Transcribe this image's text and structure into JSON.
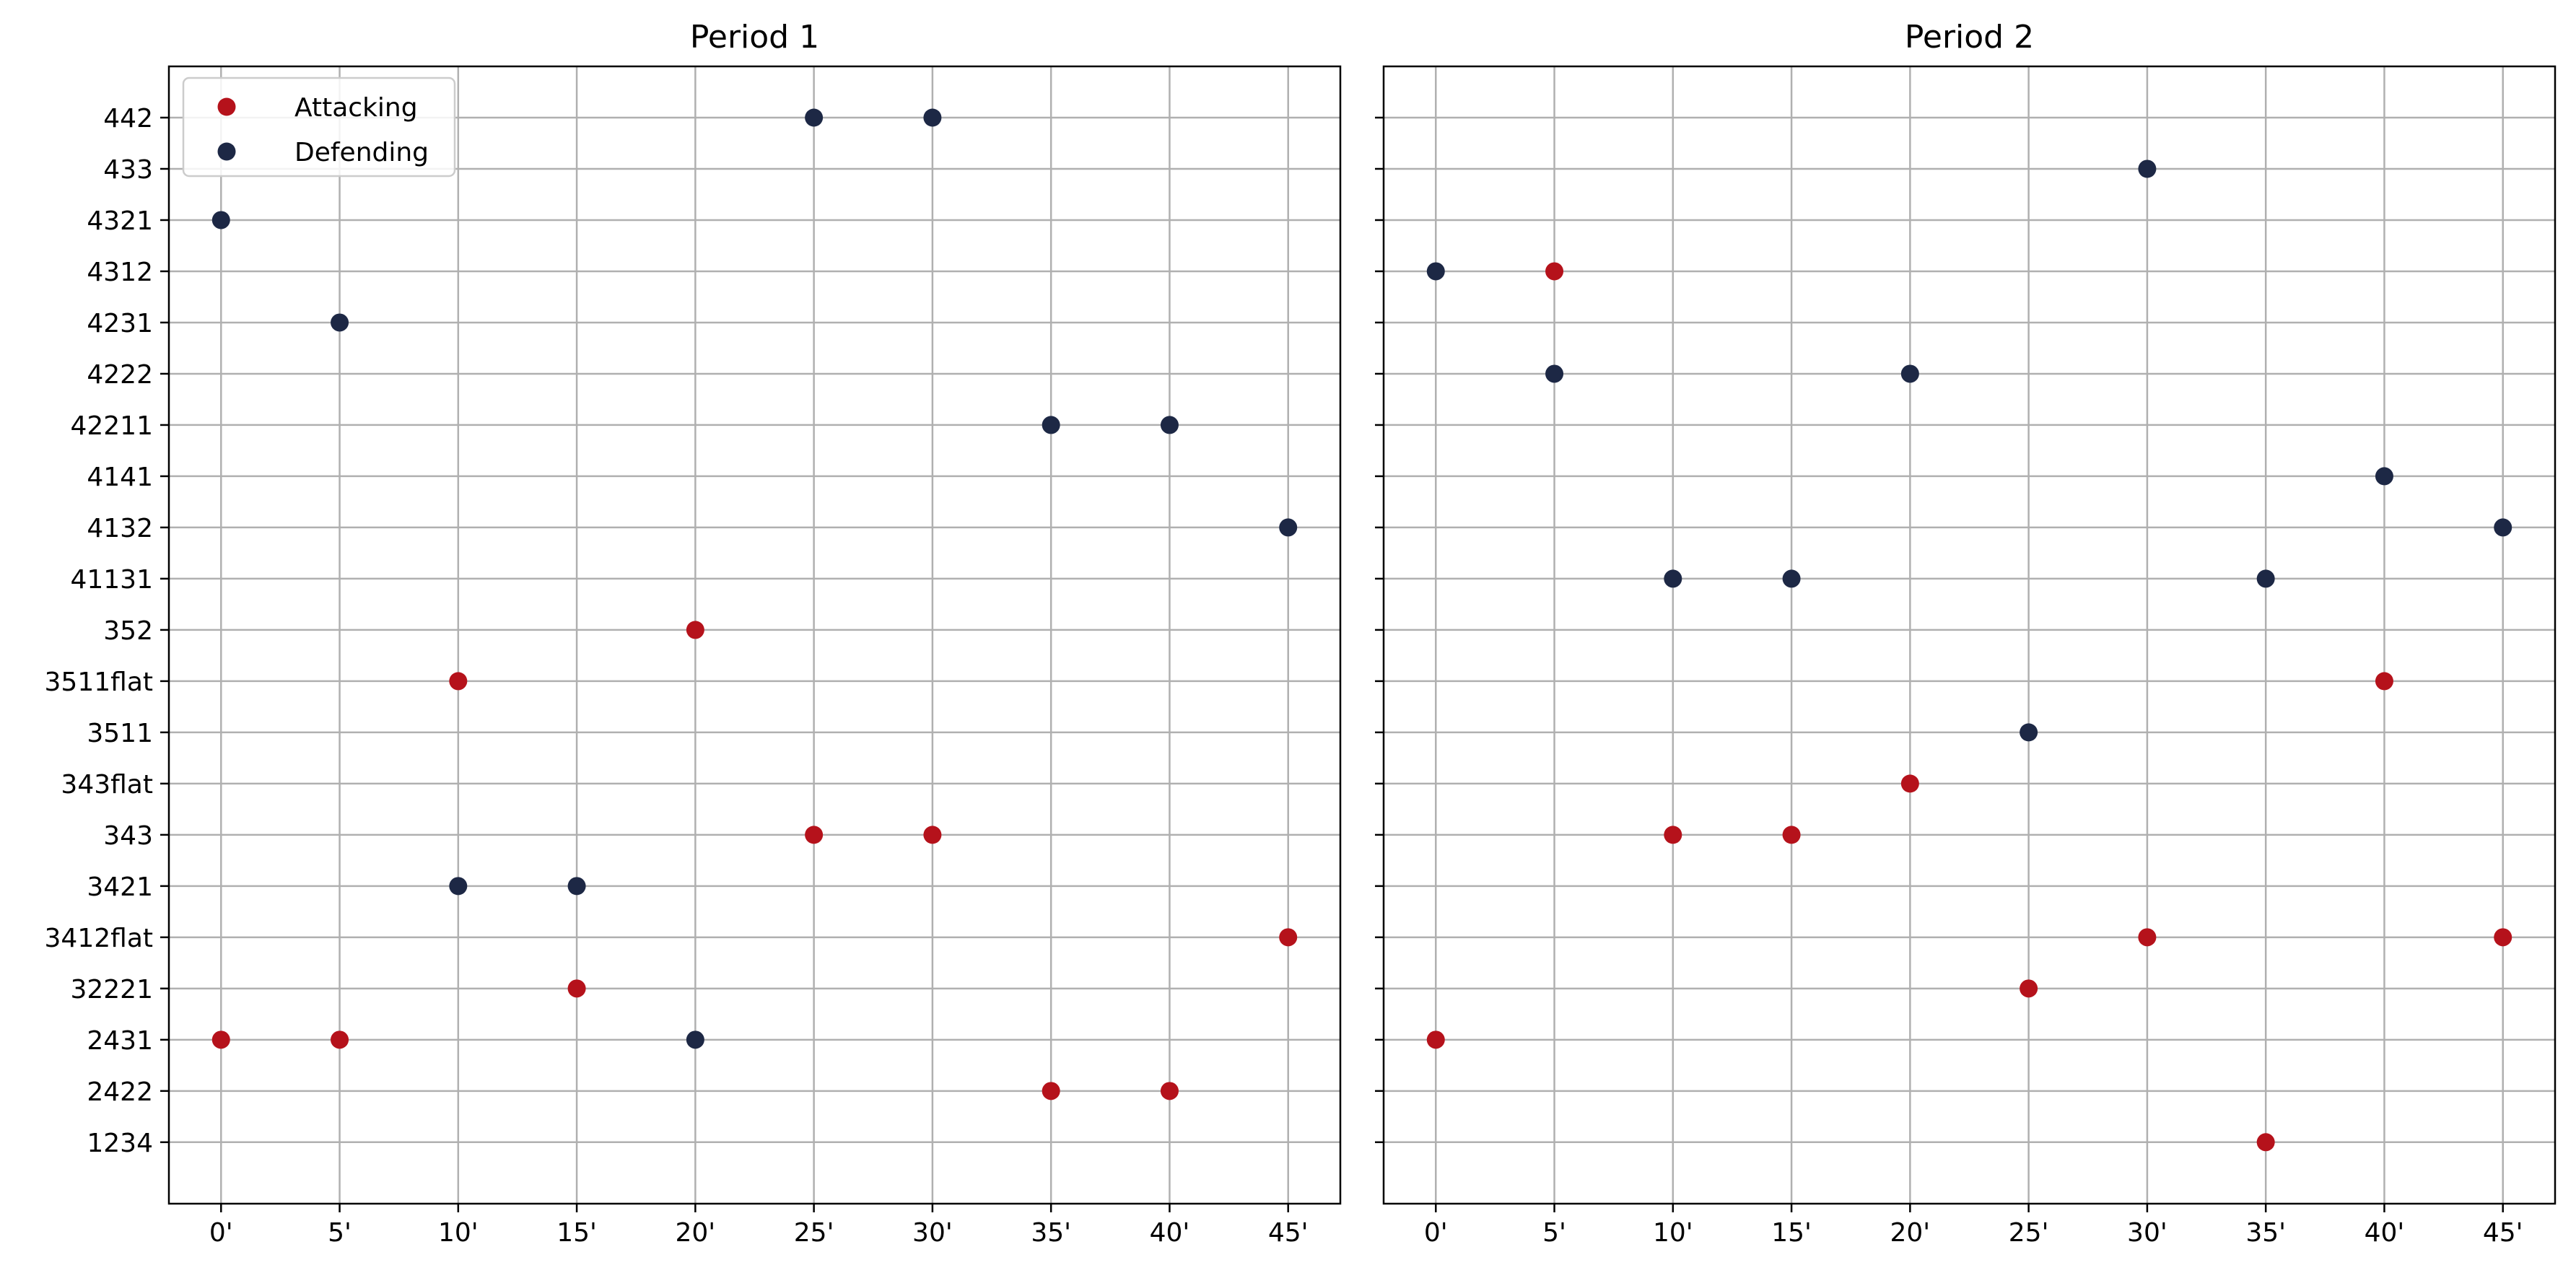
{
  "chart_data": [
    {
      "type": "scatter",
      "title": "Period 1",
      "x_ticks": [
        "0'",
        "5'",
        "10'",
        "15'",
        "20'",
        "25'",
        "30'",
        "35'",
        "40'",
        "45'"
      ],
      "y_categories": [
        "1234",
        "2422",
        "2431",
        "32221",
        "3412flat",
        "3421",
        "343",
        "343flat",
        "3511",
        "3511flat",
        "352",
        "41131",
        "4132",
        "4141",
        "42211",
        "4222",
        "4231",
        "4312",
        "4321",
        "433",
        "442"
      ],
      "xlim": [
        -2.2,
        47.2
      ],
      "grid": true,
      "legend": "top-left",
      "series": [
        {
          "name": "Attacking",
          "color": "#b5121b",
          "points": [
            {
              "x": 0,
              "y": "2431"
            },
            {
              "x": 5,
              "y": "2431"
            },
            {
              "x": 10,
              "y": "3511flat"
            },
            {
              "x": 15,
              "y": "32221"
            },
            {
              "x": 20,
              "y": "352"
            },
            {
              "x": 25,
              "y": "343"
            },
            {
              "x": 30,
              "y": "343"
            },
            {
              "x": 35,
              "y": "2422"
            },
            {
              "x": 40,
              "y": "2422"
            },
            {
              "x": 45,
              "y": "3412flat"
            }
          ]
        },
        {
          "name": "Defending",
          "color": "#1d2845",
          "points": [
            {
              "x": 0,
              "y": "4321"
            },
            {
              "x": 5,
              "y": "4231"
            },
            {
              "x": 10,
              "y": "3421"
            },
            {
              "x": 15,
              "y": "3421"
            },
            {
              "x": 20,
              "y": "2431"
            },
            {
              "x": 25,
              "y": "442"
            },
            {
              "x": 30,
              "y": "442"
            },
            {
              "x": 35,
              "y": "42211"
            },
            {
              "x": 40,
              "y": "42211"
            },
            {
              "x": 45,
              "y": "4132"
            }
          ]
        }
      ]
    },
    {
      "type": "scatter",
      "title": "Period 2",
      "x_ticks": [
        "0'",
        "5'",
        "10'",
        "15'",
        "20'",
        "25'",
        "30'",
        "35'",
        "40'",
        "45'"
      ],
      "y_categories": [
        "1234",
        "2422",
        "2431",
        "32221",
        "3412flat",
        "3421",
        "343",
        "343flat",
        "3511",
        "3511flat",
        "352",
        "41131",
        "4132",
        "4141",
        "42211",
        "4222",
        "4231",
        "4312",
        "4321",
        "433",
        "442"
      ],
      "xlim": [
        -2.2,
        47.2
      ],
      "grid": true,
      "series": [
        {
          "name": "Attacking",
          "color": "#b5121b",
          "points": [
            {
              "x": 0,
              "y": "2431"
            },
            {
              "x": 5,
              "y": "4312"
            },
            {
              "x": 10,
              "y": "343"
            },
            {
              "x": 15,
              "y": "343"
            },
            {
              "x": 20,
              "y": "343flat"
            },
            {
              "x": 25,
              "y": "32221"
            },
            {
              "x": 30,
              "y": "3412flat"
            },
            {
              "x": 35,
              "y": "1234"
            },
            {
              "x": 40,
              "y": "3511flat"
            },
            {
              "x": 45,
              "y": "3412flat"
            }
          ]
        },
        {
          "name": "Defending",
          "color": "#1d2845",
          "points": [
            {
              "x": 0,
              "y": "4312"
            },
            {
              "x": 5,
              "y": "4222"
            },
            {
              "x": 10,
              "y": "41131"
            },
            {
              "x": 15,
              "y": "41131"
            },
            {
              "x": 20,
              "y": "4222"
            },
            {
              "x": 25,
              "y": "3511"
            },
            {
              "x": 30,
              "y": "433"
            },
            {
              "x": 35,
              "y": "41131"
            },
            {
              "x": 40,
              "y": "4141"
            },
            {
              "x": 45,
              "y": "4132"
            }
          ]
        }
      ]
    }
  ]
}
